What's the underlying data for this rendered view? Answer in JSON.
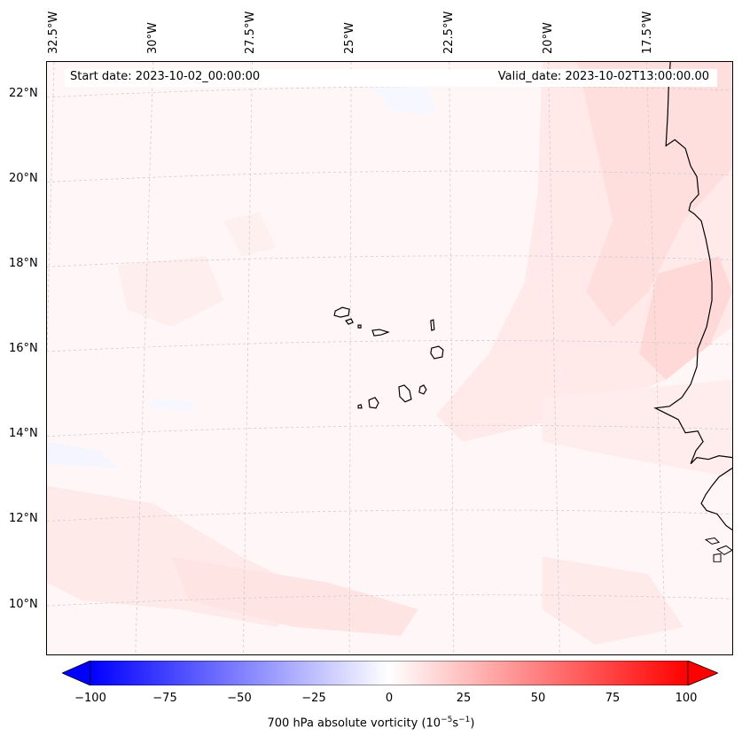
{
  "header": {
    "start_date": "Start date: 2023-10-02_00:00:00",
    "valid_date": "Valid_date: 2023-10-02T13:00:00.00"
  },
  "axes": {
    "longitude_labels": [
      "32.5°W",
      "30°W",
      "27.5°W",
      "25°W",
      "22.5°W",
      "20°W",
      "17.5°W"
    ],
    "latitude_labels": [
      "22°N",
      "20°N",
      "18°N",
      "16°N",
      "14°N",
      "12°N",
      "10°N"
    ]
  },
  "colorbar": {
    "tick_labels": [
      "−100",
      "−75",
      "−50",
      "−25",
      "0",
      "25",
      "50",
      "75",
      "100"
    ],
    "label_prefix": "700 hPa absolute vorticity (10",
    "label_exp1": "−5",
    "label_mid": "s",
    "label_exp2": "−1",
    "label_suffix": ")",
    "min_color": "#0000ff",
    "mid_color": "#ffffff",
    "max_color": "#ff0000"
  },
  "map": {
    "background_color": "#fff7f7",
    "coastline_color": "#000000",
    "gridline_color": "#cccccc"
  }
}
